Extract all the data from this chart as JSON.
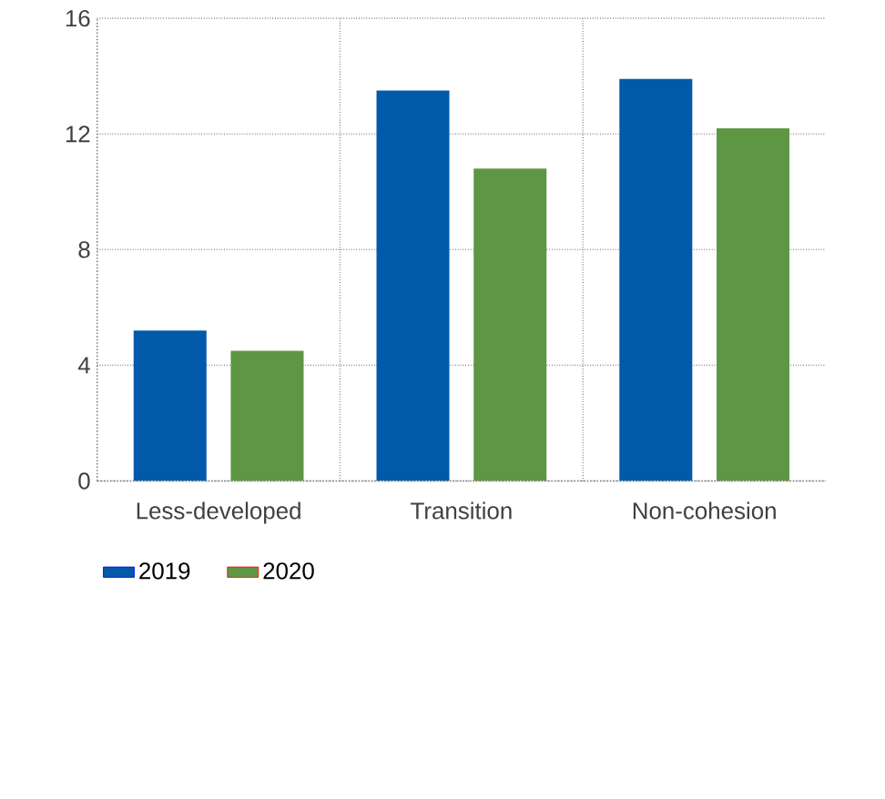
{
  "chart_data": {
    "type": "bar",
    "categories": [
      "Less-developed",
      "Transition",
      "Non-cohesion"
    ],
    "series": [
      {
        "name": "2019",
        "color": "#005aa9",
        "values": [
          5.2,
          13.5,
          13.9
        ]
      },
      {
        "name": "2020",
        "color": "#5e9644",
        "values": [
          4.5,
          10.8,
          12.2
        ]
      }
    ],
    "ylim": [
      0,
      16
    ],
    "yticks": [
      0,
      4,
      8,
      12,
      16
    ],
    "grid": true,
    "legend": "bottom"
  }
}
